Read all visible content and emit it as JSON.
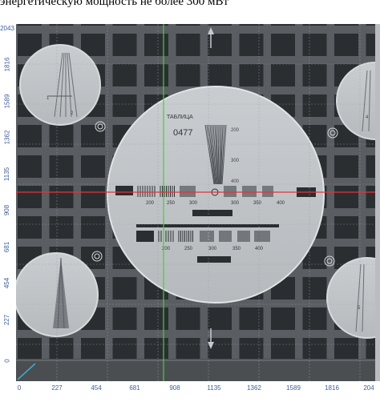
{
  "header": {
    "text": "энергетическую мощность не более 300 мВт"
  },
  "plot": {
    "x_ticks": [
      "0",
      "227",
      "454",
      "681",
      "908",
      "1135",
      "1362",
      "1589",
      "1816",
      "204"
    ],
    "y_ticks": [
      "2043",
      "1816",
      "1589",
      "1362",
      "1135",
      "908",
      "681",
      "454",
      "227",
      "0"
    ],
    "cursor_colors": {
      "vertical": "#3fd13f",
      "horizontal": "#e0343a",
      "corner": "#38b8d8"
    }
  },
  "test_card": {
    "title": "ТАБЛИЦА",
    "number": "0477",
    "wedge_labels": [
      "200",
      "300",
      "400"
    ],
    "upper_bar_labels": [
      "200",
      "250",
      "300",
      "300",
      "350",
      "400"
    ],
    "lower_bar_labels": [
      "200",
      "250",
      "300",
      "350",
      "400"
    ],
    "corner_labels": [
      "1",
      "2",
      "4",
      "5"
    ]
  }
}
